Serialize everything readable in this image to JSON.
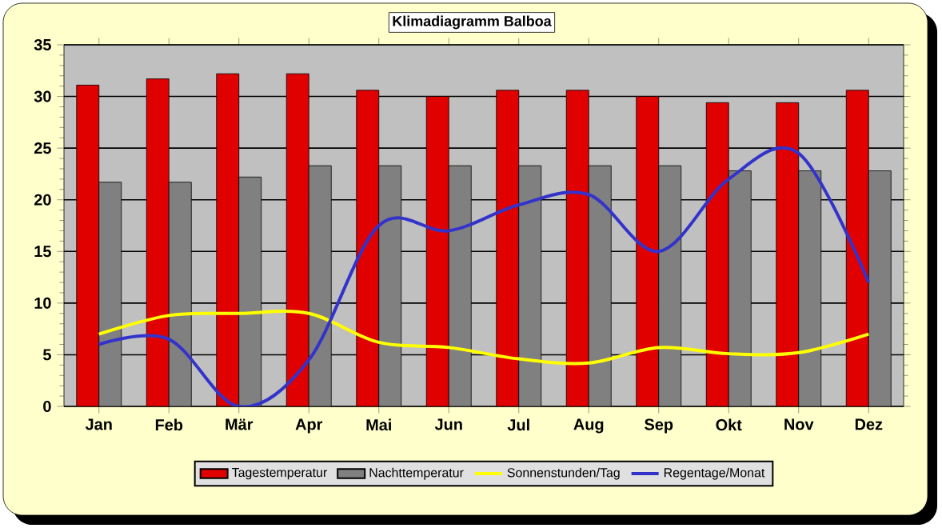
{
  "chart_data": {
    "type": "bar",
    "title": "Klimadiagramm Balboa",
    "categories": [
      "Jan",
      "Feb",
      "Mär",
      "Apr",
      "Mai",
      "Jun",
      "Jul",
      "Aug",
      "Sep",
      "Okt",
      "Nov",
      "Dez"
    ],
    "series": [
      {
        "name": "Tagestemperatur",
        "color": "#e00000",
        "values": [
          31.1,
          31.7,
          32.2,
          32.2,
          30.6,
          30.0,
          30.6,
          30.6,
          30.0,
          29.4,
          29.4,
          30.6
        ]
      },
      {
        "name": "Nachttemperatur",
        "color": "#808080",
        "values": [
          21.7,
          21.7,
          22.2,
          23.3,
          23.3,
          23.3,
          23.3,
          23.3,
          23.3,
          22.8,
          22.8,
          22.8
        ]
      },
      {
        "name": "Sonnenstunden/Tag",
        "type": "line",
        "color": "#ffff00",
        "values": [
          7.0,
          8.8,
          9.0,
          9.0,
          6.2,
          5.7,
          4.6,
          4.2,
          5.7,
          5.1,
          5.2,
          7.0
        ]
      },
      {
        "name": "Regentage/Monat",
        "type": "line",
        "color": "#3333cc",
        "values": [
          6.0,
          6.5,
          0.0,
          4.5,
          17.5,
          17.0,
          19.5,
          20.5,
          15.0,
          22.0,
          24.5,
          12.0
        ]
      }
    ],
    "ylim": [
      0,
      35
    ],
    "yticks": [
      0,
      5,
      10,
      15,
      20,
      25,
      30,
      35
    ],
    "grid": "y",
    "legend": "bottom"
  }
}
